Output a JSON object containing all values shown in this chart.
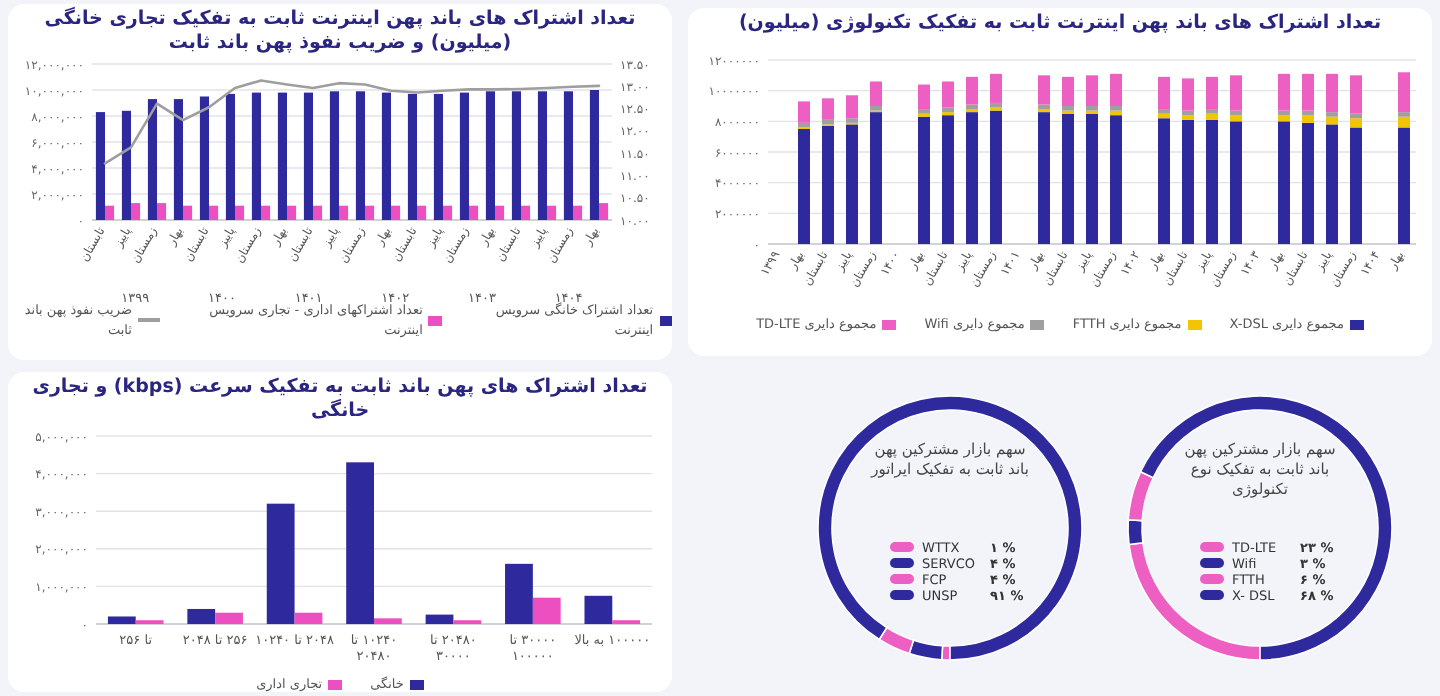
{
  "chart_data": [
    {
      "type": "bar",
      "title": "تعداد اشتراک های باند پهن اینترنت ثابت به تفکیک تجاری خانگی (میلیون) و ضریب نفوذ پهن باند ثابت",
      "categories": [
        "تابستان",
        "پاییز",
        "زمستان",
        "بهار",
        "تابستان",
        "پاییز",
        "زمستان",
        "بهار",
        "تابستان",
        "پاییز",
        "زمستان",
        "بهار",
        "تابستان",
        "پاییز",
        "زمستان",
        "بهار",
        "تابستان",
        "پاییز",
        "زمستان",
        "بهار"
      ],
      "series": [
        {
          "name": "تعداد اشتراک خانگی سرویس اینترنت",
          "color": "#2e2a9e",
          "values": [
            8300000,
            8400000,
            9300000,
            9300000,
            9500000,
            9700000,
            9800000,
            9800000,
            9800000,
            9900000,
            9900000,
            9800000,
            9700000,
            9700000,
            9800000,
            9900000,
            9900000,
            9900000,
            9900000,
            10000000
          ]
        },
        {
          "name": "تعداد اشتراکهای اداری - تجاری سرویس اینترنت",
          "color": "#ee4fc0",
          "values": [
            1100000,
            1300000,
            1300000,
            1100000,
            1100000,
            1100000,
            1100000,
            1100000,
            1100000,
            1100000,
            1100000,
            1100000,
            1100000,
            1100000,
            1100000,
            1100000,
            1100000,
            1100000,
            1100000,
            1300000
          ]
        },
        {
          "name": "ضریب نفوذ پهن باند ثابت",
          "color": "#9e9e9e",
          "type": "line",
          "axis": "y2",
          "values": [
            11.27,
            11.63,
            12.61,
            12.24,
            12.53,
            12.96,
            13.13,
            13.04,
            12.96,
            13.07,
            13.04,
            12.9,
            12.86,
            12.9,
            12.93,
            12.93,
            12.94,
            12.96,
            12.99,
            13.01
          ]
        }
      ],
      "ylim": [
        0,
        12000000
      ],
      "yticks": [
        {
          "value": 0,
          "label": "۰"
        },
        {
          "value": 2000000,
          "label": "۲,۰۰۰,۰۰۰"
        },
        {
          "value": 4000000,
          "label": "۴,۰۰۰,۰۰۰"
        },
        {
          "value": 6000000,
          "label": "۶,۰۰۰,۰۰۰"
        },
        {
          "value": 8000000,
          "label": "۸,۰۰۰,۰۰۰"
        },
        {
          "value": 10000000,
          "label": "۱۰,۰۰۰,۰۰۰"
        },
        {
          "value": 12000000,
          "label": "۱۲,۰۰۰,۰۰۰"
        }
      ],
      "y2lim": [
        10,
        13.5
      ],
      "y2ticks": [
        {
          "value": 10,
          "label": "۱۰.۰۰"
        },
        {
          "value": 10.5,
          "label": "۱۰.۵۰"
        },
        {
          "value": 11,
          "label": "۱۱.۰۰"
        },
        {
          "value": 11.5,
          "label": "۱۱.۵۰"
        },
        {
          "value": 12,
          "label": "۱۲.۰۰"
        },
        {
          "value": 12.5,
          "label": "۱۲.۵۰"
        },
        {
          "value": 13,
          "label": "۱۳.۰۰"
        },
        {
          "value": 13.5,
          "label": "۱۳.۵۰"
        }
      ],
      "annotations": [
        "۱۳۹۹",
        "۱۴۰۰",
        "۱۴۰۱",
        "۱۴۰۲",
        "۱۴۰۳",
        "۱۴۰۴"
      ],
      "grid": "y",
      "legend": "bottom"
    },
    {
      "type": "bar",
      "title": "تعداد اشتراک های باند پهن اینترنت ثابت به تفکیک تکنولوژی (میلیون)",
      "stacked": true,
      "categories": [
        "۱۳۹۹",
        "بهار",
        "تابستان",
        "پاییز",
        "زمستان",
        "۱۴۰۰",
        "بهار",
        "تابستان",
        "پاییز",
        "زمستان",
        "۱۴۰۱",
        "بهار",
        "تابستان",
        "پاییز",
        "زمستان",
        "۱۴۰۲",
        "بهار",
        "تابستان",
        "پاییز",
        "زمستان",
        "۱۴۰۳",
        "بهار",
        "تابستان",
        "پاییز",
        "زمستان",
        "۱۴۰۴",
        "بهار"
      ],
      "series": [
        {
          "name": "مجموع دایری X-DSL",
          "color": "#2e2a9e",
          "values": [
            null,
            7500000,
            7700000,
            7800000,
            8600000,
            null,
            8300000,
            8400000,
            8600000,
            8700000,
            null,
            8600000,
            8500000,
            8500000,
            8400000,
            null,
            8200000,
            8100000,
            8100000,
            8000000,
            null,
            8000000,
            7900000,
            7800000,
            7600000,
            null,
            7600000
          ]
        },
        {
          "name": "مجموع دایری FTTH",
          "color": "#f2c500",
          "values": [
            null,
            100000,
            100000,
            100000,
            100000,
            null,
            200000,
            200000,
            200000,
            200000,
            null,
            200000,
            200000,
            200000,
            300000,
            null,
            300000,
            300000,
            400000,
            400000,
            null,
            400000,
            500000,
            500000,
            600000,
            null,
            700000
          ]
        },
        {
          "name": "مجموع دایری Wifi",
          "color": "#a0a0a0",
          "values": [
            null,
            300000,
            300000,
            300000,
            300000,
            null,
            300000,
            300000,
            300000,
            300000,
            null,
            300000,
            300000,
            300000,
            300000,
            null,
            300000,
            300000,
            300000,
            300000,
            null,
            300000,
            300000,
            300000,
            300000,
            null,
            300000
          ]
        },
        {
          "name": "مجموع دایری TD-LTE",
          "color": "#ee5fc4",
          "values": [
            null,
            1400000,
            1400000,
            1500000,
            1600000,
            null,
            1600000,
            1700000,
            1800000,
            1900000,
            null,
            1900000,
            1900000,
            2000000,
            2100000,
            null,
            2100000,
            2100000,
            2100000,
            2300000,
            null,
            2400000,
            2400000,
            2500000,
            2500000,
            null,
            2600000
          ]
        }
      ],
      "ylim": [
        0,
        12000000
      ],
      "yticks": [
        {
          "value": 0,
          "label": "۰"
        },
        {
          "value": 2000000,
          "label": "۲۰۰۰۰۰۰"
        },
        {
          "value": 4000000,
          "label": "۴۰۰۰۰۰۰"
        },
        {
          "value": 6000000,
          "label": "۶۰۰۰۰۰۰"
        },
        {
          "value": 8000000,
          "label": "۸۰۰۰۰۰۰"
        },
        {
          "value": 10000000,
          "label": "۱۰۰۰۰۰۰۰"
        },
        {
          "value": 12000000,
          "label": "۱۲۰۰۰۰۰۰"
        }
      ],
      "grid": "y",
      "legend": "bottom"
    },
    {
      "type": "bar",
      "title": "تعداد اشتراک های پهن باند ثابت به تفکیک سرعت (kbps) و تجاری خانگی",
      "categories": [
        "تا ۲۵۶",
        "۲۵۶ تا ۲۰۴۸",
        "۲۰۴۸ تا ۱۰۲۴۰",
        "۱۰۲۴۰ تا ۲۰۴۸۰",
        "۲۰۴۸۰ تا ۳۰۰۰۰",
        "۳۰۰۰۰ تا ۱۰۰۰۰۰",
        "۱۰۰۰۰۰ به بالا"
      ],
      "series": [
        {
          "name": "خانگی",
          "color": "#2e2a9e",
          "values": [
            200000,
            400000,
            3200000,
            4300000,
            250000,
            1600000,
            750000
          ]
        },
        {
          "name": "تجاری اداری",
          "color": "#ee4fc0",
          "values": [
            100000,
            300000,
            300000,
            150000,
            100000,
            700000,
            100000
          ]
        }
      ],
      "ylim": [
        0,
        5000000
      ],
      "yticks": [
        {
          "value": 0,
          "label": "۰"
        },
        {
          "value": 1000000,
          "label": "۱,۰۰۰,۰۰۰"
        },
        {
          "value": 2000000,
          "label": "۲,۰۰۰,۰۰۰"
        },
        {
          "value": 3000000,
          "label": "۳,۰۰۰,۰۰۰"
        },
        {
          "value": 4000000,
          "label": "۴,۰۰۰,۰۰۰"
        },
        {
          "value": 5000000,
          "label": "۵,۰۰۰,۰۰۰"
        }
      ],
      "grid": "y",
      "legend": "bottom"
    },
    {
      "type": "donut",
      "title": "سهم بازار مشترکین پهن باند ثابت به تفکیک ایراتور",
      "categories": [
        "WTTX",
        "SERVCO",
        "FCP",
        "UNSP"
      ],
      "values": [
        1,
        4,
        4,
        91
      ],
      "colors": [
        "#ee5fc4",
        "#2e2a9e",
        "#ee5fc4",
        "#2e2a9e"
      ],
      "value_labels": [
        "۱ %",
        "۴ %",
        "۴ %",
        "۹۱ %"
      ],
      "legend": "bottom"
    },
    {
      "type": "donut",
      "title": "سهم بازار مشترکین پهن باند ثابت به تفکیک نوع تکنولوژی",
      "categories": [
        "TD-LTE",
        "Wifi",
        "FTTH",
        "X- DSL"
      ],
      "values": [
        23,
        3,
        6,
        68
      ],
      "colors": [
        "#ee5fc4",
        "#2e2a9e",
        "#ee5fc4",
        "#2e2a9e"
      ],
      "value_labels": [
        "۲۳ %",
        "۳ %",
        "۶ %",
        "۶۸ %"
      ],
      "legend": "bottom"
    }
  ]
}
